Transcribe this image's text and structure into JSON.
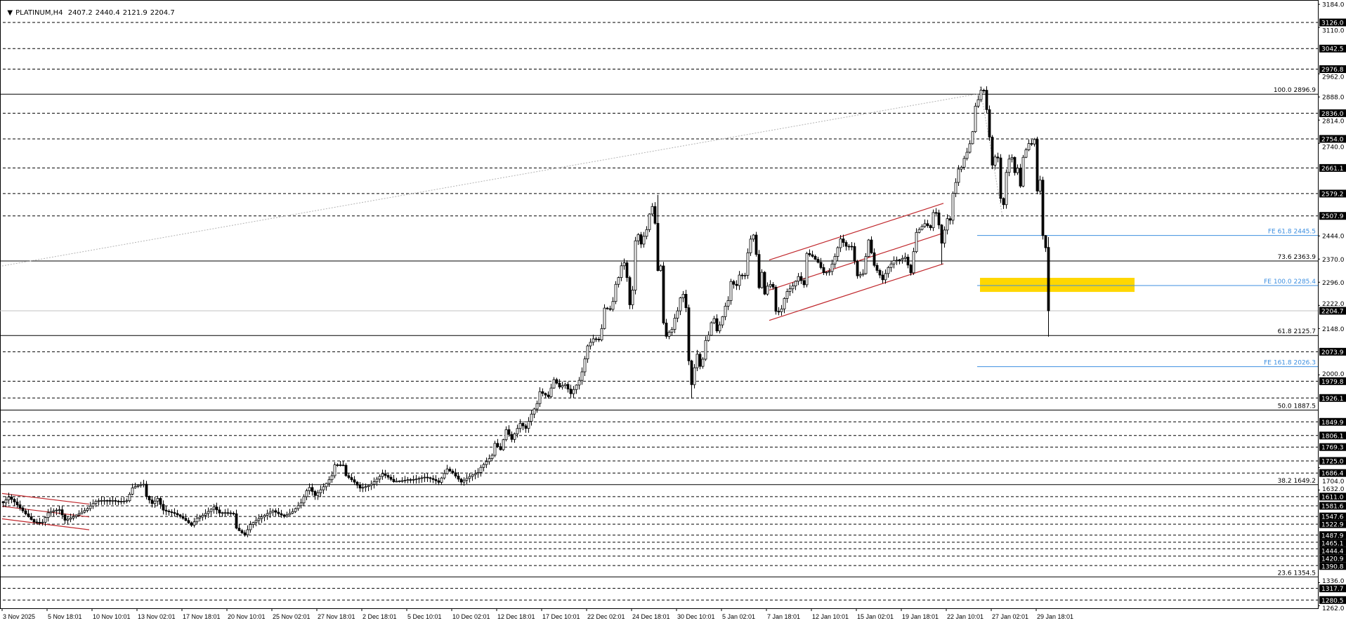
{
  "header": {
    "menu_icon": "triangle-down-icon",
    "symbol": "PLATINUM,H4",
    "open": "2407.2",
    "high": "2440.4",
    "low": "2121.9",
    "close": "2204.7"
  },
  "chart_data": {
    "type": "candlestick",
    "symbol": "PLATINUM",
    "timeframe": "H4",
    "ylim": [
      1262,
      3184
    ],
    "grid": false,
    "price_ticks": [
      "3184.0",
      "3110.0",
      "2962.0",
      "2888.0",
      "2814.0",
      "2740.0",
      "2444.0",
      "2370.0",
      "2296.0",
      "2222.0",
      "2148.0",
      "2000.0",
      "1704.0",
      "1632.0",
      "1336.0",
      "1262.0"
    ],
    "time_ticks": [
      "3 Nov 2025",
      "5 Nov 18:01",
      "10 Nov 10:01",
      "13 Nov 02:01",
      "17 Nov 18:01",
      "20 Nov 10:01",
      "25 Nov 02:01",
      "27 Nov 18:01",
      "2 Dec 18:01",
      "5 Dec 10:01",
      "10 Dec 02:01",
      "12 Dec 18:01",
      "17 Dec 10:01",
      "22 Dec 02:01",
      "24 Dec 18:01",
      "30 Dec 10:01",
      "5 Jan 02:01",
      "7 Jan 18:01",
      "12 Jan 10:01",
      "15 Jan 02:01",
      "19 Jan 18:01",
      "22 Jan 10:01",
      "27 Jan 02:01",
      "29 Jan 18:01"
    ],
    "bars_per_time_tick": 16,
    "close_path": [
      [
        0,
        1591
      ],
      [
        2,
        1606
      ],
      [
        6,
        1572
      ],
      [
        11,
        1535
      ],
      [
        14,
        1531
      ],
      [
        16,
        1557
      ],
      [
        20,
        1565
      ],
      [
        22,
        1535
      ],
      [
        26,
        1557
      ],
      [
        30,
        1572
      ],
      [
        33,
        1591
      ],
      [
        39,
        1602
      ],
      [
        44,
        1599
      ],
      [
        46,
        1636
      ],
      [
        50,
        1647
      ],
      [
        51,
        1610
      ],
      [
        53,
        1591
      ],
      [
        55,
        1610
      ],
      [
        57,
        1572
      ],
      [
        61,
        1554
      ],
      [
        67,
        1520
      ],
      [
        69,
        1546
      ],
      [
        75,
        1576
      ],
      [
        77,
        1554
      ],
      [
        82,
        1557
      ],
      [
        83,
        1513
      ],
      [
        86,
        1494
      ],
      [
        88,
        1524
      ],
      [
        93,
        1546
      ],
      [
        96,
        1565
      ],
      [
        100,
        1554
      ],
      [
        103,
        1565
      ],
      [
        106,
        1587
      ],
      [
        108,
        1625
      ],
      [
        109,
        1636
      ],
      [
        111,
        1614
      ],
      [
        114,
        1647
      ],
      [
        117,
        1681
      ],
      [
        118,
        1714
      ],
      [
        121,
        1707
      ],
      [
        122,
        1673
      ],
      [
        125,
        1655
      ],
      [
        127,
        1640
      ],
      [
        131,
        1655
      ],
      [
        135,
        1681
      ],
      [
        139,
        1655
      ],
      [
        144,
        1670
      ],
      [
        150,
        1670
      ],
      [
        155,
        1655
      ],
      [
        158,
        1703
      ],
      [
        160,
        1692
      ],
      [
        163,
        1658
      ],
      [
        165,
        1666
      ],
      [
        169,
        1685
      ],
      [
        170,
        1703
      ],
      [
        174,
        1748
      ],
      [
        175,
        1786
      ],
      [
        177,
        1763
      ],
      [
        179,
        1823
      ],
      [
        181,
        1789
      ],
      [
        184,
        1842
      ],
      [
        186,
        1830
      ],
      [
        188,
        1879
      ],
      [
        190,
        1913
      ],
      [
        191,
        1950
      ],
      [
        194,
        1928
      ],
      [
        196,
        1980
      ],
      [
        198,
        1957
      ],
      [
        200,
        1969
      ],
      [
        202,
        1943
      ],
      [
        205,
        1987
      ],
      [
        206,
        2013
      ],
      [
        208,
        2092
      ],
      [
        210,
        2111
      ],
      [
        212,
        2107
      ],
      [
        213,
        2144
      ],
      [
        214,
        2211
      ],
      [
        216,
        2211
      ],
      [
        217,
        2238
      ],
      [
        218,
        2294
      ],
      [
        219,
        2316
      ],
      [
        220,
        2353
      ],
      [
        221,
        2361
      ],
      [
        222,
        2312
      ],
      [
        223,
        2223
      ],
      [
        224,
        2268
      ],
      [
        225,
        2424
      ],
      [
        226,
        2443
      ],
      [
        227,
        2413
      ],
      [
        228,
        2439
      ],
      [
        229,
        2462
      ],
      [
        230,
        2514
      ],
      [
        231,
        2540
      ],
      [
        232,
        2488
      ],
      [
        233,
        2338
      ],
      [
        234,
        2353
      ],
      [
        235,
        2170
      ],
      [
        236,
        2126
      ],
      [
        237,
        2137
      ],
      [
        238,
        2144
      ],
      [
        239,
        2178
      ],
      [
        240,
        2200
      ],
      [
        241,
        2241
      ],
      [
        242,
        2253
      ],
      [
        243,
        2211
      ],
      [
        244,
        2043
      ],
      [
        245,
        1969
      ],
      [
        246,
        2025
      ],
      [
        247,
        2070
      ],
      [
        248,
        2032
      ],
      [
        249,
        2055
      ],
      [
        250,
        2114
      ],
      [
        251,
        2129
      ],
      [
        252,
        2167
      ],
      [
        253,
        2178
      ],
      [
        254,
        2137
      ],
      [
        255,
        2155
      ],
      [
        256,
        2181
      ],
      [
        257,
        2215
      ],
      [
        258,
        2234
      ],
      [
        259,
        2297
      ],
      [
        260,
        2290
      ],
      [
        261,
        2288
      ],
      [
        262,
        2323
      ],
      [
        264,
        2323
      ],
      [
        265,
        2394
      ],
      [
        266,
        2436
      ],
      [
        267,
        2447
      ],
      [
        268,
        2383
      ],
      [
        269,
        2275
      ],
      [
        270,
        2323
      ],
      [
        271,
        2253
      ],
      [
        272,
        2279
      ],
      [
        273,
        2286
      ],
      [
        274,
        2279
      ],
      [
        275,
        2204
      ],
      [
        276,
        2205
      ],
      [
        277,
        2215
      ],
      [
        278,
        2249
      ],
      [
        279,
        2271
      ],
      [
        281,
        2286
      ],
      [
        283,
        2312
      ],
      [
        285,
        2283
      ],
      [
        286,
        2383
      ],
      [
        288,
        2376
      ],
      [
        290,
        2361
      ],
      [
        292,
        2331
      ],
      [
        294,
        2335
      ],
      [
        296,
        2380
      ],
      [
        298,
        2432
      ],
      [
        300,
        2406
      ],
      [
        302,
        2406
      ],
      [
        304,
        2316
      ],
      [
        306,
        2327
      ],
      [
        307,
        2383
      ],
      [
        308,
        2436
      ],
      [
        310,
        2353
      ],
      [
        311,
        2335
      ],
      [
        313,
        2301
      ],
      [
        315,
        2338
      ],
      [
        317,
        2361
      ],
      [
        319,
        2368
      ],
      [
        321,
        2380
      ],
      [
        323,
        2331
      ],
      [
        324,
        2398
      ],
      [
        325,
        2458
      ],
      [
        327,
        2473
      ],
      [
        328,
        2480
      ],
      [
        330,
        2465
      ],
      [
        331,
        2514
      ],
      [
        332,
        2514
      ],
      [
        333,
        2477
      ],
      [
        334,
        2421
      ],
      [
        335,
        2465
      ],
      [
        336,
        2503
      ],
      [
        337,
        2499
      ],
      [
        338,
        2585
      ],
      [
        339,
        2619
      ],
      [
        340,
        2660
      ],
      [
        341,
        2664
      ],
      [
        342,
        2690
      ],
      [
        343,
        2708
      ],
      [
        344,
        2734
      ],
      [
        345,
        2772
      ],
      [
        346,
        2854
      ],
      [
        347,
        2876
      ],
      [
        348,
        2908
      ],
      [
        349,
        2910
      ],
      [
        350,
        2850
      ],
      [
        351,
        2764
      ],
      [
        352,
        2675
      ],
      [
        353,
        2701
      ],
      [
        354,
        2697
      ],
      [
        355,
        2566
      ],
      [
        356,
        2544
      ],
      [
        357,
        2645
      ],
      [
        358,
        2686
      ],
      [
        359,
        2690
      ],
      [
        360,
        2641
      ],
      [
        361,
        2656
      ],
      [
        362,
        2600
      ],
      [
        363,
        2694
      ],
      [
        364,
        2720
      ],
      [
        365,
        2742
      ],
      [
        366,
        2742
      ],
      [
        367,
        2757
      ],
      [
        368,
        2592
      ],
      [
        369,
        2626
      ],
      [
        370,
        2447
      ],
      [
        371,
        2406
      ]
    ],
    "extreme_wicks": [
      {
        "bar": 245,
        "low": 1924
      },
      {
        "bar": 348,
        "high": 2921
      },
      {
        "bar": 233,
        "high": 2575
      },
      {
        "bar": 334,
        "low": 2353
      }
    ],
    "last_bar": {
      "open": 2407.2,
      "high": 2440.4,
      "low": 2121.9,
      "close": 2204.7
    },
    "levels": [
      "3126.0",
      "3042.5",
      "2976.8",
      "2836.0",
      "2754.0",
      "2661.1",
      "2579.2",
      "2507.9",
      "2073.9",
      "1979.8",
      "1926.1",
      "1849.9",
      "1806.1",
      "1769.3",
      "1725.0",
      "1686.4",
      "1611.0",
      "1581.6",
      "1547.6",
      "1522.9",
      "1487.9",
      "1465.1",
      "1444.4",
      "1420.9",
      "1390.8",
      "1317.7",
      "1280.5"
    ],
    "fib_retracement": [
      {
        "level": "100.0",
        "price": "2896.9"
      },
      {
        "level": "73.6",
        "price": "2363.9"
      },
      {
        "level": "61.8",
        "price": "2125.7"
      },
      {
        "level": "50.0",
        "price": "1887.5"
      },
      {
        "level": "38.2",
        "price": "1649.2"
      },
      {
        "level": "23.6",
        "price": "1354.5"
      }
    ],
    "fib_expansion": [
      {
        "level": "FE 61.8",
        "price": "2445.5"
      },
      {
        "level": "FE 100.0",
        "price": "2285.4"
      },
      {
        "level": "FE 161.8",
        "price": "2026.3"
      }
    ],
    "fib_expansion_start_bar": 347,
    "current_price": "2204.7",
    "zone": {
      "from_bar": 348,
      "to_bar": 403,
      "low": 2265,
      "high": 2310
    },
    "trendlines": [
      {
        "from": [
          0,
          2348
        ],
        "to": [
          348,
          2899
        ]
      },
      {
        "from": [
          348,
          2921
        ],
        "to": [
          356,
          2507
        ]
      }
    ],
    "channels": [
      {
        "lines": [
          [
            [
              0,
              1621
            ],
            [
              31,
              1587
            ]
          ],
          [
            [
              0,
              1580
            ],
            [
              31,
              1546
            ]
          ],
          [
            [
              0,
              1540
            ],
            [
              31,
              1505
            ]
          ]
        ]
      },
      {
        "lines": [
          [
            [
              273,
              2367
            ],
            [
              335,
              2548
            ]
          ],
          [
            [
              273,
              2271
            ],
            [
              335,
              2453
            ]
          ],
          [
            [
              273,
              2174
            ],
            [
              335,
              2355
            ]
          ]
        ]
      }
    ],
    "colors": {
      "bull_body": "#ffffff",
      "bear_body": "#000000",
      "candle_outline": "#000000",
      "fib": "#000000",
      "fe": "#3d8fe0",
      "zone": "#ffd700",
      "channel": "#c0282d",
      "trendline": "#b4b4b4",
      "current_price_line": "#c0c0c0",
      "label_bg": "#000000",
      "label_text": "#ffffff"
    }
  }
}
